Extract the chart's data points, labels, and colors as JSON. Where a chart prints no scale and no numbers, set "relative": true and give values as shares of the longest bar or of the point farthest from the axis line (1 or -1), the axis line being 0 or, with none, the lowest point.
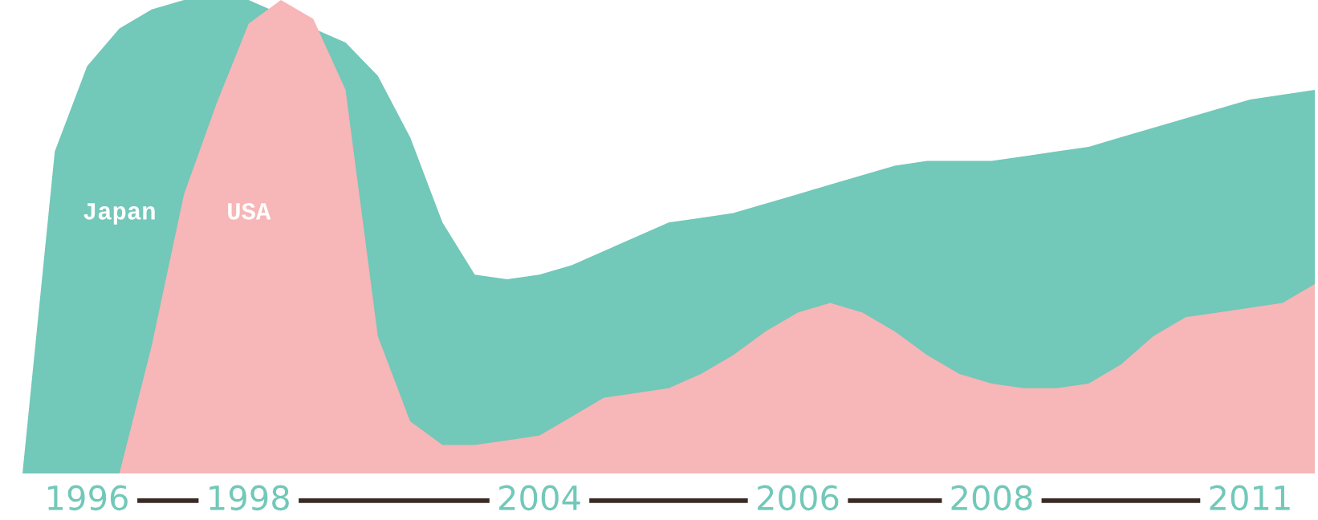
{
  "chart_data": {
    "type": "area",
    "relative": true,
    "categories": [
      null,
      null,
      "1996",
      null,
      null,
      null,
      null,
      "1998",
      null,
      null,
      null,
      null,
      null,
      null,
      null,
      null,
      "2004",
      null,
      null,
      null,
      null,
      null,
      null,
      null,
      "2006",
      null,
      null,
      null,
      null,
      null,
      "2008",
      null,
      null,
      null,
      null,
      null,
      null,
      null,
      "2011",
      null,
      null
    ],
    "series": [
      {
        "name": "Japan",
        "color": "#72c8b9",
        "values": [
          0,
          0.68,
          0.86,
          0.94,
          0.98,
          1.0,
          1.0,
          1.0,
          null,
          null,
          0.91,
          0.84,
          0.71,
          0.53,
          0.42,
          0.41,
          0.42,
          0.44,
          0.47,
          0.5,
          0.53,
          0.54,
          0.55,
          0.57,
          0.59,
          0.61,
          0.63,
          0.65,
          0.66,
          0.66,
          0.66,
          0.67,
          0.68,
          0.69,
          0.71,
          0.73,
          0.75,
          0.77,
          0.79,
          0.8,
          0.81
        ]
      },
      {
        "name": "USA",
        "color": "#f7b6b7",
        "values": [
          null,
          null,
          null,
          0,
          0.27,
          0.59,
          0.78,
          0.95,
          1.0,
          0.96,
          0.81,
          0.29,
          0.11,
          0.06,
          0.06,
          0.07,
          0.08,
          0.12,
          0.16,
          0.17,
          0.18,
          0.21,
          0.25,
          0.3,
          0.34,
          0.36,
          0.34,
          0.3,
          0.25,
          0.21,
          0.19,
          0.18,
          0.18,
          0.19,
          0.23,
          0.29,
          0.33,
          0.34,
          0.35,
          0.36,
          0.4
        ]
      }
    ]
  }
}
